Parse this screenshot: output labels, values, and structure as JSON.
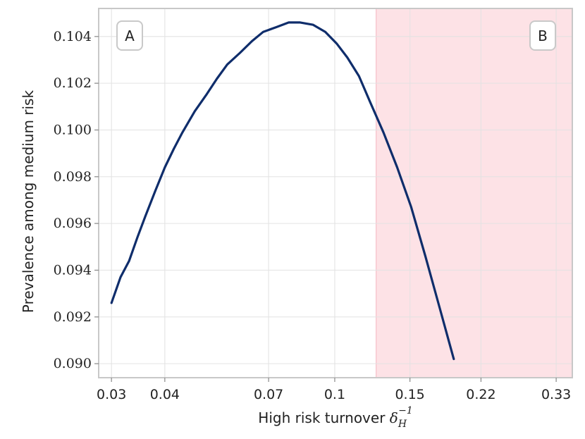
{
  "chart_data": {
    "type": "line",
    "title": "",
    "xlabel": "High risk turnover",
    "xlabel_symbol": "δ",
    "xlabel_subscript": "H",
    "xlabel_superscript": "−1",
    "ylabel": "Prevalence among medium risk",
    "x_scale": "log",
    "xlim": [
      0.028,
      0.36
    ],
    "ylim": [
      0.0894,
      0.1052
    ],
    "x_ticks": [
      0.03,
      0.04,
      0.07,
      0.1,
      0.15,
      0.22,
      0.33
    ],
    "x_tick_labels": [
      "0.03",
      "0.04",
      "0.07",
      "0.1",
      "0.15",
      "0.22",
      "0.33"
    ],
    "y_ticks": [
      0.09,
      0.092,
      0.094,
      0.096,
      0.098,
      0.1,
      0.102,
      0.104
    ],
    "y_tick_labels": [
      "0.090",
      "0.092",
      "0.094",
      "0.096",
      "0.098",
      "0.100",
      "0.102",
      "0.104"
    ],
    "grid": true,
    "shaded_region": {
      "x_start": 0.125,
      "x_end": 0.36,
      "color": "#fde2e6"
    },
    "region_labels": [
      "A",
      "B"
    ],
    "series": [
      {
        "color": "#0f2d6b",
        "points": [
          [
            0.03,
            0.0926
          ],
          [
            0.0315,
            0.0937
          ],
          [
            0.033,
            0.0944
          ],
          [
            0.0345,
            0.0954
          ],
          [
            0.036,
            0.0963
          ],
          [
            0.038,
            0.0974
          ],
          [
            0.04,
            0.0984
          ],
          [
            0.042,
            0.0992
          ],
          [
            0.044,
            0.0999
          ],
          [
            0.047,
            0.1008
          ],
          [
            0.05,
            0.1015
          ],
          [
            0.053,
            0.1022
          ],
          [
            0.056,
            0.1028
          ],
          [
            0.06,
            0.1033
          ],
          [
            0.064,
            0.1038
          ],
          [
            0.068,
            0.1042
          ],
          [
            0.073,
            0.1044
          ],
          [
            0.078,
            0.1046
          ],
          [
            0.083,
            0.1046
          ],
          [
            0.089,
            0.1045
          ],
          [
            0.095,
            0.1042
          ],
          [
            0.101,
            0.1037
          ],
          [
            0.107,
            0.1031
          ],
          [
            0.114,
            0.1023
          ],
          [
            0.121,
            0.1012
          ],
          [
            0.13,
            0.0999
          ],
          [
            0.14,
            0.0984
          ],
          [
            0.151,
            0.0967
          ],
          [
            0.163,
            0.0946
          ],
          [
            0.176,
            0.0924
          ],
          [
            0.19,
            0.0902
          ]
        ]
      }
    ]
  }
}
